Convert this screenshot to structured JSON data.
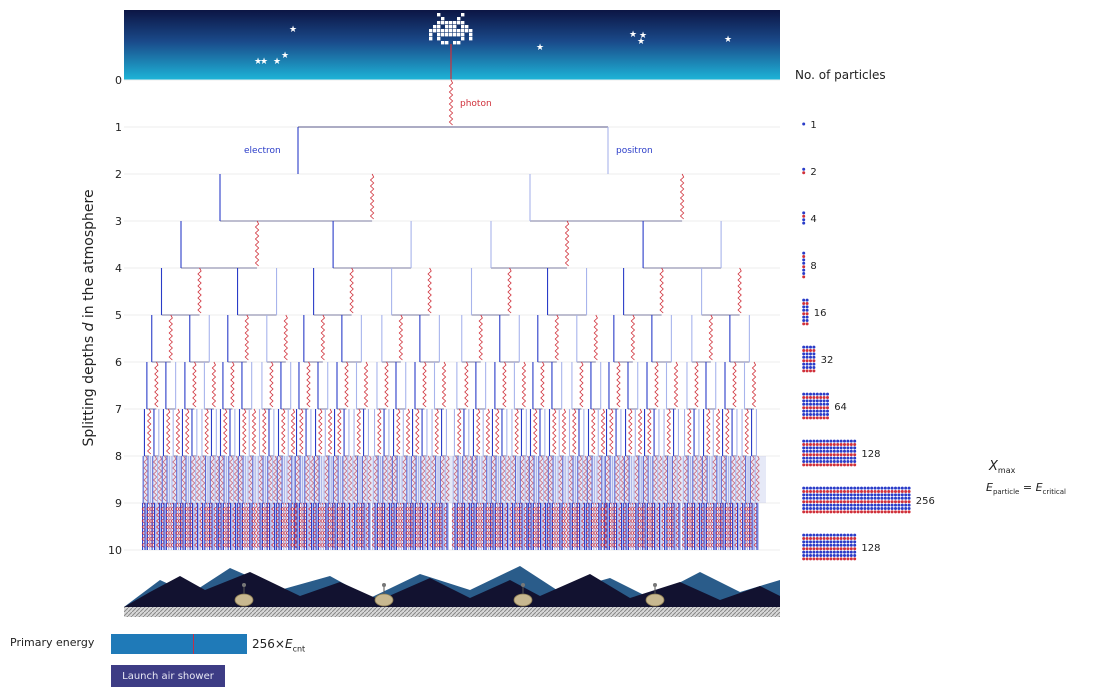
{
  "sky": {
    "invader_label": "space invader",
    "colors": {
      "top": "#0c1544",
      "bottom": "#1eb5d8"
    }
  },
  "tree": {
    "ylabel": "Splitting depths d in the atmosphere",
    "ylabel_parts": {
      "prefix": "Splitting depths ",
      "var": "d",
      "suffix": " in the atmosphere"
    },
    "depth_ticks": [
      "0",
      "1",
      "2",
      "3",
      "4",
      "5",
      "6",
      "7",
      "8",
      "9",
      "10"
    ],
    "labels": {
      "photon": "photon",
      "electron": "electron",
      "positron": "positron"
    },
    "colors": {
      "photon": "#d0303a",
      "electron": "#2a3cc8",
      "positron": "#a8b4ec",
      "node": "#5a5a8a"
    }
  },
  "particles": {
    "title": "No. of particles",
    "counts": [
      "1",
      "2",
      "4",
      "8",
      "16",
      "32",
      "64",
      "128",
      "256",
      "128"
    ],
    "xmax": {
      "symbol": "X",
      "sub": "max"
    },
    "energy_eq": {
      "lhs": "E",
      "lhs_sub": "particle",
      "rhs": "E",
      "rhs_sub": "critical"
    }
  },
  "controls": {
    "primary_energy_label": "Primary energy",
    "energy_value": "256×E",
    "energy_factor": "256×",
    "energy_var": "E",
    "energy_sub": "cnt",
    "launch_label": "Launch air shower",
    "slider_fraction": 0.6
  }
}
